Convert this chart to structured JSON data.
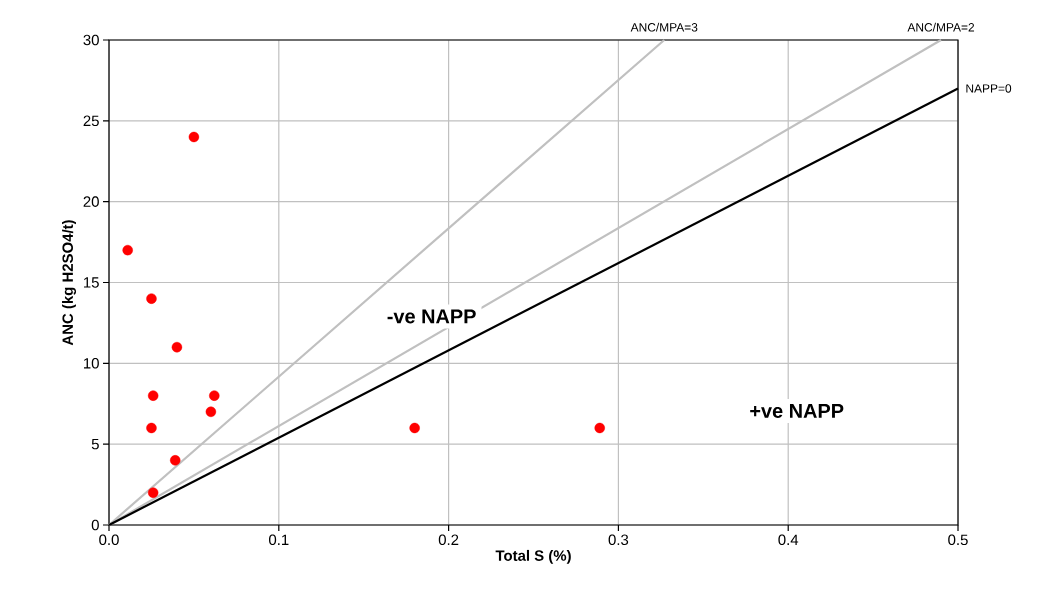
{
  "chart_data": {
    "type": "scatter",
    "xlabel": "Total S (%)",
    "ylabel": "ANC (kg H2SO4/t)",
    "xlim": [
      0,
      0.5
    ],
    "ylim": [
      0,
      30
    ],
    "xticks": [
      {
        "value": 0,
        "label": "0.0"
      },
      {
        "value": 0.1,
        "label": "0.1"
      },
      {
        "value": 0.2,
        "label": "0.2"
      },
      {
        "value": 0.3,
        "label": "0.3"
      },
      {
        "value": 0.4,
        "label": "0.4"
      },
      {
        "value": 0.5,
        "label": "0.5"
      }
    ],
    "yticks": [
      0,
      5,
      10,
      15,
      20,
      25,
      30
    ],
    "grid": true,
    "series": [
      {
        "type": "line",
        "name": "ANC/MPA=3",
        "color": "#c0c0c0",
        "marker": "none",
        "x": [
          0,
          0.327
        ],
        "values": [
          0,
          30
        ]
      },
      {
        "type": "line",
        "name": "ANC/MPA=2",
        "color": "#c0c0c0",
        "marker": "none",
        "x": [
          0,
          0.49
        ],
        "values": [
          0,
          30
        ]
      },
      {
        "type": "line",
        "name": "NAPP=0",
        "color": "#000000",
        "marker": "none",
        "x": [
          0,
          0.5
        ],
        "values": [
          0,
          27
        ]
      },
      {
        "marker": "circle",
        "color": "#ff0000",
        "x": [
          0.011,
          0.05,
          0.025,
          0.04,
          0.026,
          0.062,
          0.06,
          0.025,
          0.039,
          0.026,
          0.18,
          0.289
        ],
        "values": [
          17,
          24,
          14,
          11,
          8,
          8,
          7,
          6,
          4,
          2,
          6,
          6
        ]
      }
    ],
    "annotations": [
      "-ve NAPP",
      "+ve NAPP"
    ]
  }
}
